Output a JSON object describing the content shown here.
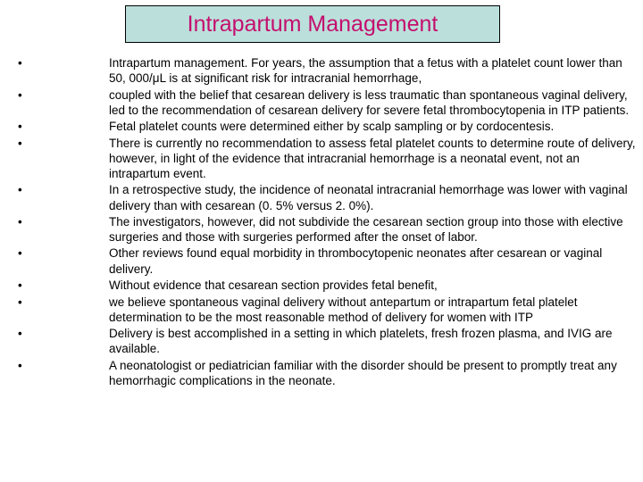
{
  "title": "Intrapartum Management",
  "title_color": "#c40f6e",
  "title_bg": "#bbe0db",
  "title_border": "#000000",
  "body_fontsize": 13.5,
  "bullets": [
    "Intrapartum management. For years, the assumption that a fetus with a platelet count lower than 50, 000/μL is at significant risk for intracranial hemorrhage,",
    "coupled with the belief that cesarean delivery is less traumatic than spontaneous vaginal delivery, led to the recommendation of cesarean delivery for severe fetal thrombocytopenia in ITP patients.",
    "Fetal platelet counts were determined either by scalp sampling or by cordocentesis.",
    "There is currently no recommendation to assess fetal platelet counts to determine route of delivery, however, in light of the evidence that intracranial hemorrhage is a neonatal event, not an intrapartum event.",
    " In a retrospective study, the incidence of neonatal intracranial hemorrhage was lower with vaginal delivery than with cesarean (0. 5% versus 2. 0%).",
    " The investigators, however, did not subdivide the cesarean section group into those with elective surgeries and those with surgeries performed after the onset of labor.",
    " Other reviews found equal morbidity in thrombocytopenic neonates after cesarean or vaginal delivery.",
    "Without evidence that cesarean section provides fetal benefit,",
    " we believe spontaneous vaginal delivery without antepartum or intrapartum fetal platelet determination to be the most reasonable method of delivery for women with ITP",
    "Delivery is best accomplished in a setting in which platelets, fresh frozen plasma, and IVIG are available.",
    " A neonatologist or pediatrician familiar with the disorder should be present to promptly treat any hemorrhagic complications in the neonate."
  ]
}
